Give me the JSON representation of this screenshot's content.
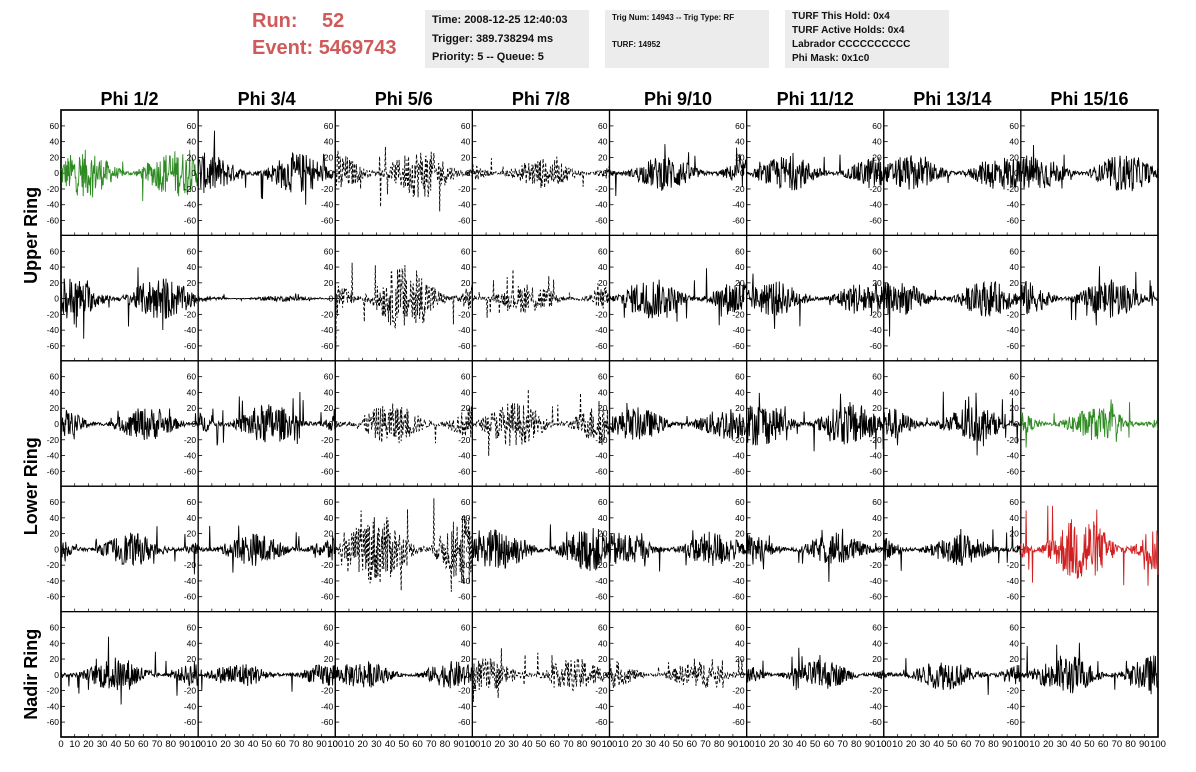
{
  "header": {
    "run_label": "Run:",
    "run_value": "52",
    "event_label": "Event:",
    "event_value": "5469743",
    "time": "Time: 2008-12-25 12:40:03",
    "trigger": "Trigger: 389.738294 ms",
    "priority": "Priority: 5 -- Queue: 5",
    "trig_num": "Trig Num: 14943 -- Trig Type: RF",
    "turf": "TURF: 14952",
    "turf_this_hold": "TURF This Hold: 0x4",
    "turf_active_holds": "TURF Active Holds: 0x4",
    "labrador": "Labrador CCCCCCCCCC",
    "phi_mask": "Phi Mask: 0x1c0"
  },
  "colors": {
    "header_red": "#d05a5a",
    "info_bg": "#ececec",
    "trace_default": "#000000",
    "trace_green": "#2e8b22",
    "trace_red": "#d02020"
  },
  "chart_data": {
    "type": "line",
    "columns": [
      "Phi 1/2",
      "Phi 3/4",
      "Phi 5/6",
      "Phi 7/8",
      "Phi 9/10",
      "Phi 11/12",
      "Phi 13/14",
      "Phi 15/16"
    ],
    "ring_labels": [
      {
        "label": "Upper Ring",
        "rows": [
          0,
          1
        ]
      },
      {
        "label": "Lower Ring",
        "rows": [
          2,
          3
        ]
      },
      {
        "label": "Nadir Ring",
        "rows": [
          4
        ]
      }
    ],
    "xlim": [
      0,
      100
    ],
    "ylim": [
      -70,
      70
    ],
    "x_ticks": [
      0,
      10,
      20,
      30,
      40,
      50,
      60,
      70,
      80,
      90,
      100
    ],
    "y_ticks": [
      -60,
      -40,
      -20,
      0,
      20,
      40,
      60
    ],
    "panels": [
      [
        {
          "style": "solid",
          "color": "green",
          "amplitude": 17,
          "x_end": 100
        },
        {
          "style": "solid",
          "color": "black",
          "amplitude": 15,
          "x_end": 100
        },
        {
          "style": "dashed",
          "color": "black",
          "amplitude": 18,
          "x_end": 100
        },
        {
          "style": "dashed",
          "color": "black",
          "amplitude": 11,
          "x_end": 100
        },
        {
          "style": "solid",
          "color": "black",
          "amplitude": 13,
          "x_end": 100
        },
        {
          "style": "solid",
          "color": "black",
          "amplitude": 13,
          "x_end": 100
        },
        {
          "style": "solid",
          "color": "black",
          "amplitude": 13,
          "x_end": 100
        },
        {
          "style": "solid",
          "color": "black",
          "amplitude": 14,
          "x_end": 100
        }
      ],
      [
        {
          "style": "solid",
          "color": "black",
          "amplitude": 16,
          "x_end": 100
        },
        {
          "style": "solid",
          "color": "black",
          "amplitude": 2,
          "x_end": 100
        },
        {
          "style": "dashed",
          "color": "black",
          "amplitude": 25,
          "x_end": 100
        },
        {
          "style": "dashed",
          "color": "black",
          "amplitude": 11,
          "x_end": 100
        },
        {
          "style": "solid",
          "color": "black",
          "amplitude": 15,
          "x_end": 100
        },
        {
          "style": "solid",
          "color": "black",
          "amplitude": 13,
          "x_end": 100
        },
        {
          "style": "solid",
          "color": "black",
          "amplitude": 13,
          "x_end": 100
        },
        {
          "style": "solid",
          "color": "black",
          "amplitude": 14,
          "x_end": 100
        }
      ],
      [
        {
          "style": "solid",
          "color": "black",
          "amplitude": 12,
          "x_end": 100
        },
        {
          "style": "solid",
          "color": "black",
          "amplitude": 15,
          "x_end": 100
        },
        {
          "style": "dashed",
          "color": "black",
          "amplitude": 15,
          "x_end": 100
        },
        {
          "style": "dashed",
          "color": "black",
          "amplitude": 16,
          "x_end": 100
        },
        {
          "style": "solid",
          "color": "black",
          "amplitude": 12,
          "x_end": 100
        },
        {
          "style": "solid",
          "color": "black",
          "amplitude": 16,
          "x_end": 100
        },
        {
          "style": "solid",
          "color": "black",
          "amplitude": 14,
          "x_end": 100
        },
        {
          "style": "solid",
          "color": "green",
          "amplitude": 12,
          "x_end": 100
        }
      ],
      [
        {
          "style": "solid",
          "color": "black",
          "amplitude": 12,
          "x_end": 100
        },
        {
          "style": "solid",
          "color": "black",
          "amplitude": 12,
          "x_end": 100
        },
        {
          "style": "dashed",
          "color": "black",
          "amplitude": 26,
          "x_end": 100
        },
        {
          "style": "solid",
          "color": "black",
          "amplitude": 16,
          "x_end": 100
        },
        {
          "style": "solid",
          "color": "black",
          "amplitude": 13,
          "x_end": 100
        },
        {
          "style": "solid",
          "color": "black",
          "amplitude": 12,
          "x_end": 100
        },
        {
          "style": "solid",
          "color": "black",
          "amplitude": 12,
          "x_end": 100
        },
        {
          "style": "solid",
          "color": "red",
          "amplitude": 25,
          "x_end": 100
        }
      ],
      [
        {
          "style": "solid",
          "color": "black",
          "amplitude": 13,
          "x_end": 100
        },
        {
          "style": "solid",
          "color": "black",
          "amplitude": 9,
          "x_end": 100
        },
        {
          "style": "solid",
          "color": "black",
          "amplitude": 10,
          "x_end": 100
        },
        {
          "style": "dashed",
          "color": "black",
          "amplitude": 12,
          "x_end": 100
        },
        {
          "style": "dashed",
          "color": "black",
          "amplitude": 10,
          "x_end": 100
        },
        {
          "style": "solid",
          "color": "black",
          "amplitude": 11,
          "x_end": 100
        },
        {
          "style": "solid",
          "color": "black",
          "amplitude": 11,
          "x_end": 100
        },
        {
          "style": "solid",
          "color": "black",
          "amplitude": 15,
          "x_end": 100
        }
      ]
    ]
  }
}
